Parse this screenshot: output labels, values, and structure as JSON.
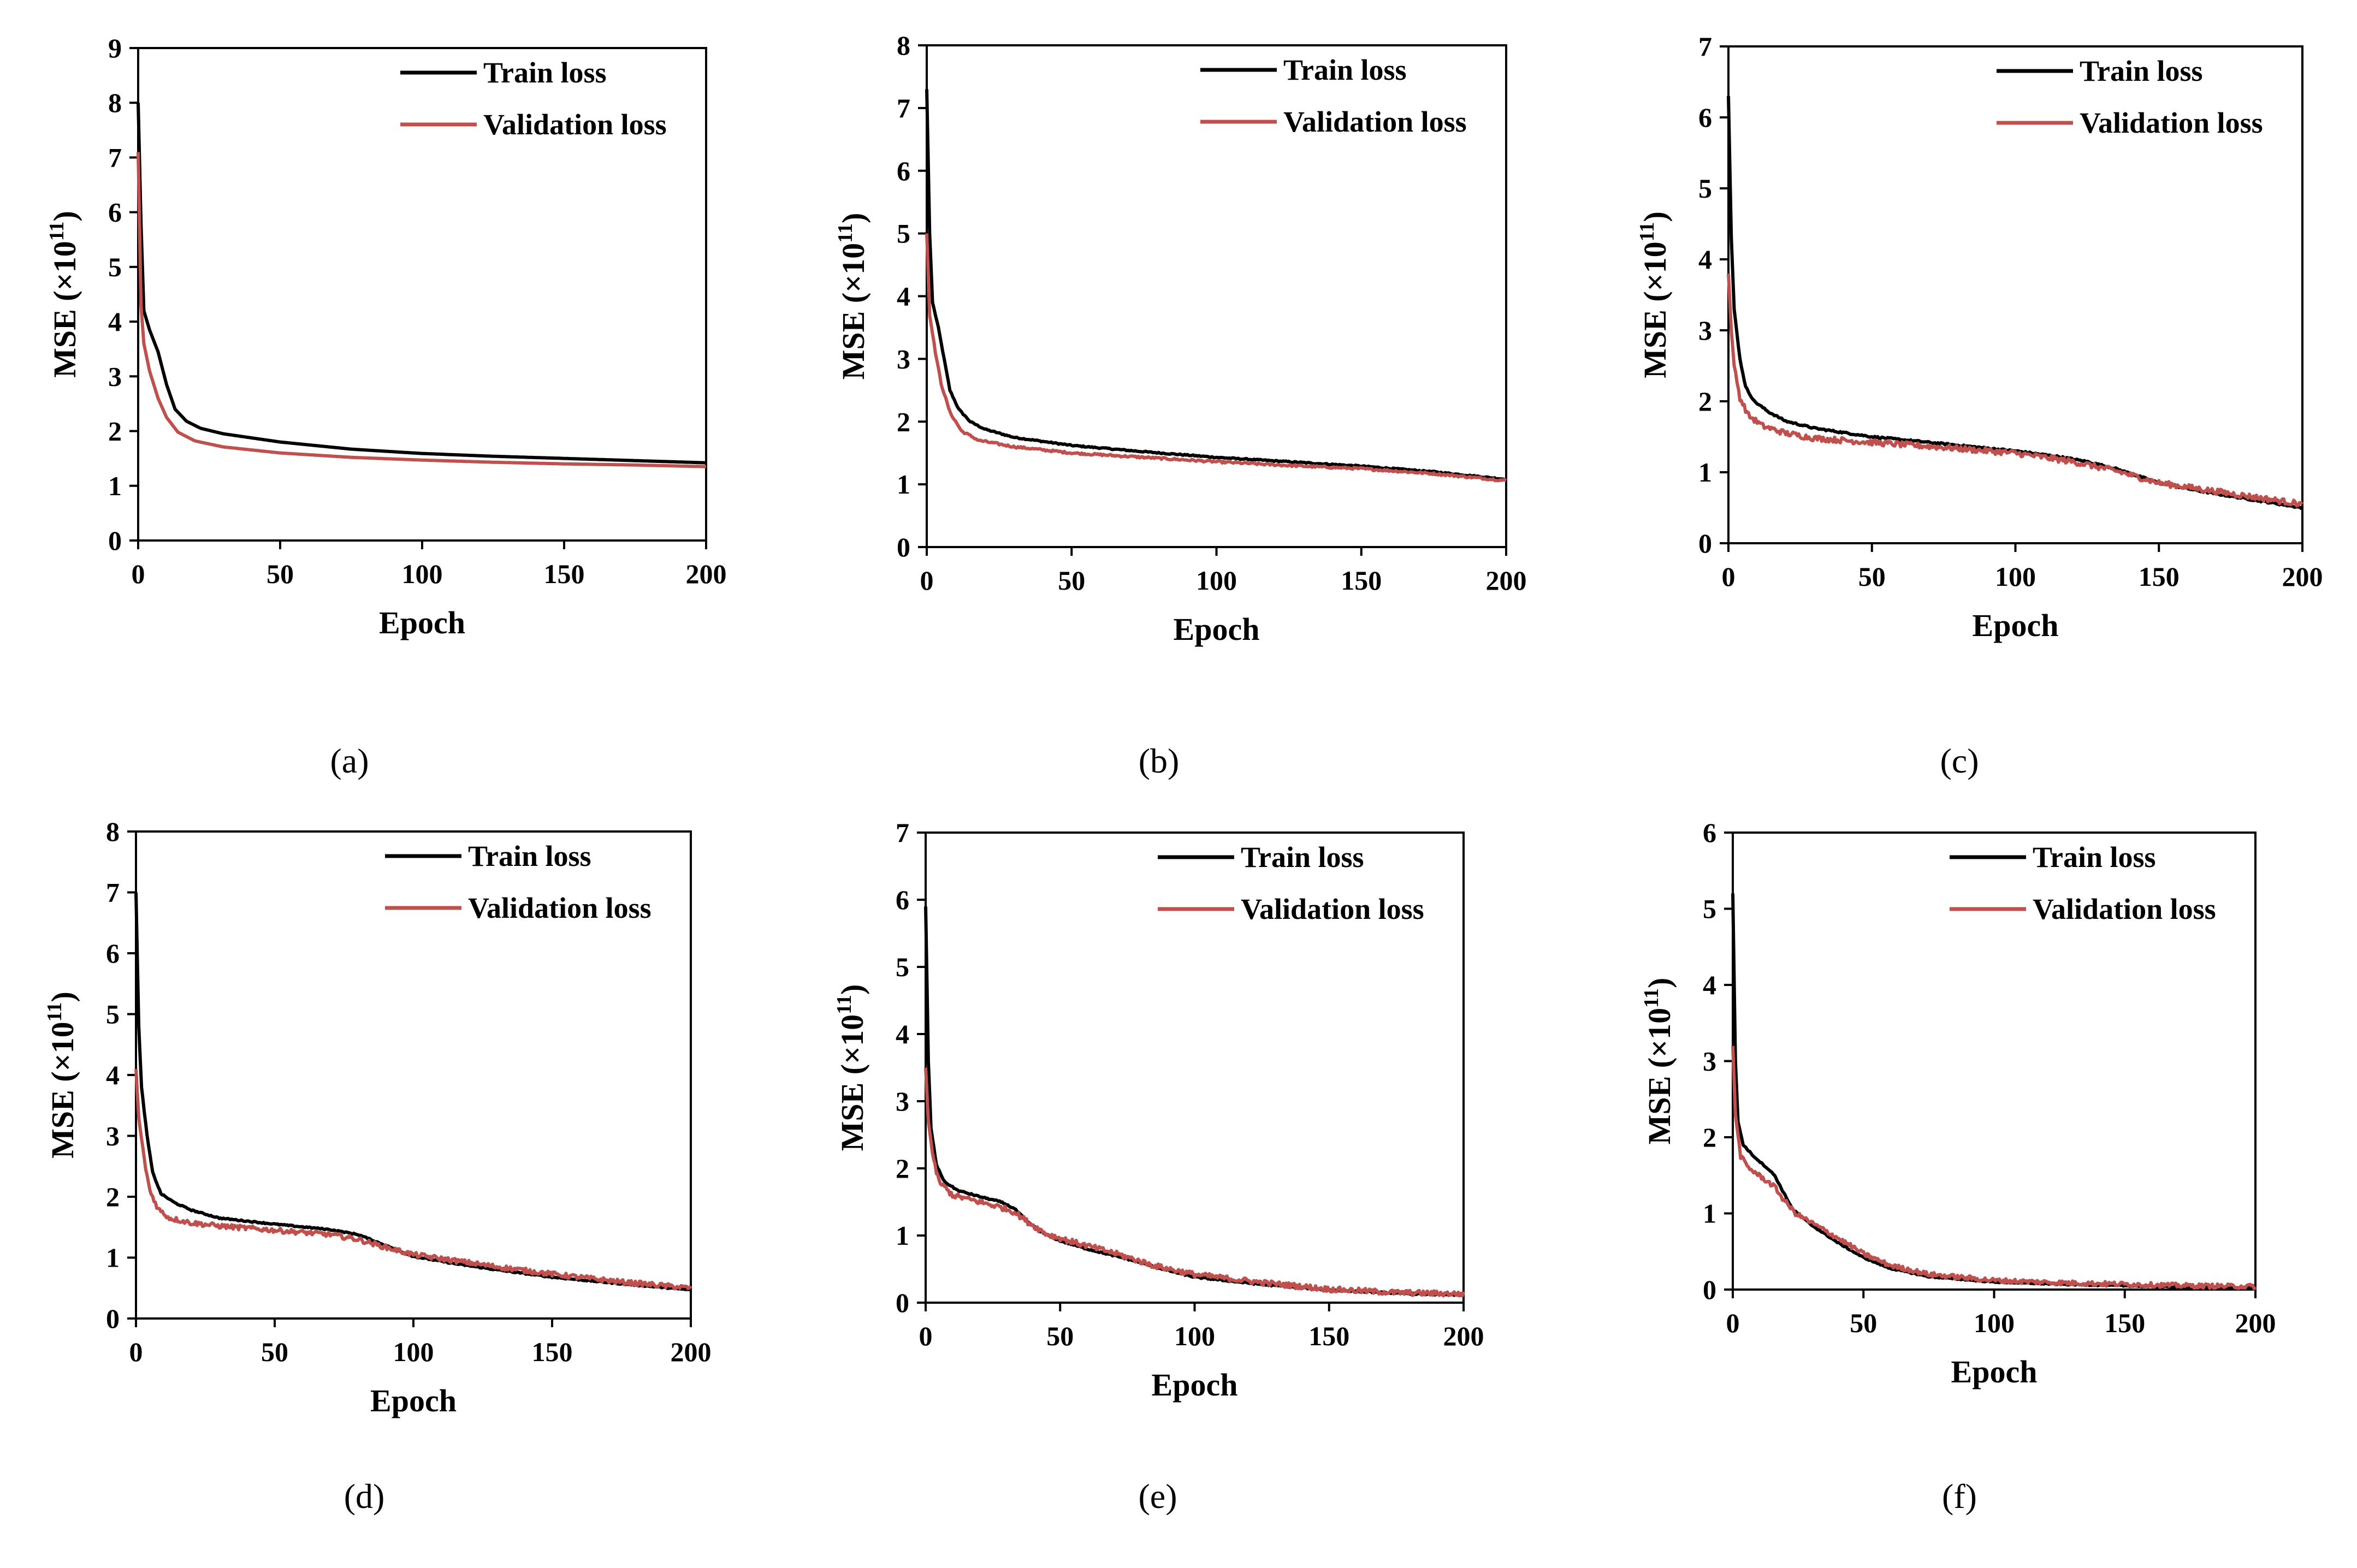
{
  "figure": {
    "series_colors": {
      "Train loss": "#000000",
      "Validation loss": "#c0504d"
    }
  },
  "chart_data": [
    {
      "type": "line",
      "panel": "(a)",
      "caption": "(a)",
      "xlabel": "Epoch",
      "ylabel": "MSE (×10",
      "ylabel_exp": "11",
      "ylabel_close": ")",
      "xlim": [
        0,
        200
      ],
      "ylim": [
        0,
        9
      ],
      "xticks": [
        0,
        50,
        100,
        150,
        200
      ],
      "yticks": [
        0,
        1,
        2,
        3,
        4,
        5,
        6,
        7,
        8,
        9
      ],
      "legend": {
        "position": "top-right",
        "entries": [
          "Train loss",
          "Validation loss"
        ]
      },
      "series": [
        {
          "name": "Train loss",
          "color": "#000000",
          "noise": 0,
          "points": [
            [
              0,
              8.0
            ],
            [
              1,
              5.8
            ],
            [
              2,
              4.2
            ],
            [
              4,
              3.85
            ],
            [
              7,
              3.45
            ],
            [
              10,
              2.85
            ],
            [
              13,
              2.4
            ],
            [
              17,
              2.18
            ],
            [
              22,
              2.05
            ],
            [
              30,
              1.95
            ],
            [
              50,
              1.8
            ],
            [
              75,
              1.67
            ],
            [
              100,
              1.59
            ],
            [
              125,
              1.54
            ],
            [
              150,
              1.5
            ],
            [
              175,
              1.46
            ],
            [
              200,
              1.42
            ]
          ]
        },
        {
          "name": "Validation loss",
          "color": "#c0504d",
          "noise": 0,
          "points": [
            [
              0,
              7.1
            ],
            [
              1,
              4.3
            ],
            [
              2,
              3.6
            ],
            [
              4,
              3.1
            ],
            [
              7,
              2.6
            ],
            [
              10,
              2.25
            ],
            [
              14,
              1.98
            ],
            [
              20,
              1.82
            ],
            [
              30,
              1.71
            ],
            [
              50,
              1.6
            ],
            [
              75,
              1.52
            ],
            [
              100,
              1.47
            ],
            [
              125,
              1.43
            ],
            [
              150,
              1.4
            ],
            [
              175,
              1.38
            ],
            [
              200,
              1.35
            ]
          ]
        }
      ]
    },
    {
      "type": "line",
      "panel": "(b)",
      "caption": "(b)",
      "xlabel": "Epoch",
      "ylabel": "MSE (×10",
      "ylabel_exp": "11",
      "ylabel_close": ")",
      "xlim": [
        0,
        200
      ],
      "ylim": [
        0,
        8
      ],
      "xticks": [
        0,
        50,
        100,
        150,
        200
      ],
      "yticks": [
        0,
        1,
        2,
        3,
        4,
        5,
        6,
        7,
        8
      ],
      "legend": {
        "position": "top-right",
        "entries": [
          "Train loss",
          "Validation loss"
        ]
      },
      "series": [
        {
          "name": "Train loss",
          "color": "#000000",
          "noise": 0.005,
          "points": [
            [
              0,
              7.3
            ],
            [
              1,
              5.0
            ],
            [
              2,
              3.9
            ],
            [
              4,
              3.5
            ],
            [
              6,
              3.0
            ],
            [
              8,
              2.5
            ],
            [
              11,
              2.2
            ],
            [
              15,
              2.0
            ],
            [
              20,
              1.88
            ],
            [
              30,
              1.75
            ],
            [
              50,
              1.62
            ],
            [
              75,
              1.52
            ],
            [
              100,
              1.43
            ],
            [
              125,
              1.36
            ],
            [
              150,
              1.29
            ],
            [
              175,
              1.2
            ],
            [
              200,
              1.08
            ]
          ]
        },
        {
          "name": "Validation loss",
          "color": "#c0504d",
          "noise": 0.008,
          "points": [
            [
              0,
              5.0
            ],
            [
              1,
              3.7
            ],
            [
              3,
              3.1
            ],
            [
              5,
              2.6
            ],
            [
              8,
              2.15
            ],
            [
              12,
              1.85
            ],
            [
              18,
              1.7
            ],
            [
              30,
              1.6
            ],
            [
              50,
              1.5
            ],
            [
              75,
              1.43
            ],
            [
              100,
              1.36
            ],
            [
              125,
              1.3
            ],
            [
              150,
              1.25
            ],
            [
              175,
              1.17
            ],
            [
              200,
              1.06
            ]
          ]
        }
      ]
    },
    {
      "type": "line",
      "panel": "(c)",
      "caption": "(c)",
      "xlabel": "Epoch",
      "ylabel": "MSE (×10",
      "ylabel_exp": "11",
      "ylabel_close": ")",
      "xlim": [
        0,
        200
      ],
      "ylim": [
        0,
        7
      ],
      "xticks": [
        0,
        50,
        100,
        150,
        200
      ],
      "yticks": [
        0,
        1,
        2,
        3,
        4,
        5,
        6,
        7
      ],
      "legend": {
        "position": "top-right",
        "entries": [
          "Train loss",
          "Validation loss"
        ]
      },
      "series": [
        {
          "name": "Train loss",
          "color": "#000000",
          "noise": 0.006,
          "points": [
            [
              0,
              6.3
            ],
            [
              1,
              4.3
            ],
            [
              2,
              3.3
            ],
            [
              4,
              2.6
            ],
            [
              6,
              2.2
            ],
            [
              9,
              2.0
            ],
            [
              14,
              1.85
            ],
            [
              20,
              1.72
            ],
            [
              30,
              1.62
            ],
            [
              50,
              1.5
            ],
            [
              75,
              1.4
            ],
            [
              100,
              1.3
            ],
            [
              115,
              1.22
            ],
            [
              125,
              1.15
            ],
            [
              135,
              1.05
            ],
            [
              150,
              0.85
            ],
            [
              165,
              0.73
            ],
            [
              180,
              0.63
            ],
            [
              200,
              0.5
            ]
          ]
        },
        {
          "name": "Validation loss",
          "color": "#c0504d",
          "noise": 0.02,
          "points": [
            [
              0,
              3.8
            ],
            [
              1,
              3.0
            ],
            [
              2,
              2.5
            ],
            [
              4,
              2.05
            ],
            [
              7,
              1.8
            ],
            [
              12,
              1.65
            ],
            [
              20,
              1.55
            ],
            [
              30,
              1.48
            ],
            [
              50,
              1.42
            ],
            [
              75,
              1.35
            ],
            [
              100,
              1.27
            ],
            [
              120,
              1.15
            ],
            [
              135,
              1.02
            ],
            [
              150,
              0.85
            ],
            [
              175,
              0.7
            ],
            [
              200,
              0.55
            ]
          ]
        }
      ]
    },
    {
      "type": "line",
      "panel": "(d)",
      "caption": "(d)",
      "xlabel": "Epoch",
      "ylabel": "MSE (×10",
      "ylabel_exp": "11",
      "ylabel_close": ")",
      "xlim": [
        0,
        200
      ],
      "ylim": [
        0,
        8
      ],
      "xticks": [
        0,
        50,
        100,
        150,
        200
      ],
      "yticks": [
        0,
        1,
        2,
        3,
        4,
        5,
        6,
        7,
        8
      ],
      "legend": {
        "position": "top-right",
        "entries": [
          "Train loss",
          "Validation loss"
        ]
      },
      "series": [
        {
          "name": "Train loss",
          "color": "#000000",
          "noise": 0.005,
          "points": [
            [
              0,
              7.0
            ],
            [
              1,
              4.8
            ],
            [
              2,
              3.8
            ],
            [
              4,
              3.0
            ],
            [
              6,
              2.4
            ],
            [
              9,
              2.05
            ],
            [
              14,
              1.9
            ],
            [
              20,
              1.78
            ],
            [
              30,
              1.65
            ],
            [
              50,
              1.55
            ],
            [
              70,
              1.46
            ],
            [
              80,
              1.38
            ],
            [
              90,
              1.2
            ],
            [
              100,
              1.02
            ],
            [
              115,
              0.9
            ],
            [
              130,
              0.8
            ],
            [
              150,
              0.68
            ],
            [
              175,
              0.57
            ],
            [
              200,
              0.47
            ]
          ]
        },
        {
          "name": "Validation loss",
          "color": "#c0504d",
          "noise": 0.02,
          "points": [
            [
              0,
              4.1
            ],
            [
              1,
              3.3
            ],
            [
              3,
              2.6
            ],
            [
              5,
              2.1
            ],
            [
              8,
              1.8
            ],
            [
              12,
              1.65
            ],
            [
              20,
              1.57
            ],
            [
              30,
              1.52
            ],
            [
              50,
              1.45
            ],
            [
              70,
              1.38
            ],
            [
              80,
              1.3
            ],
            [
              90,
              1.17
            ],
            [
              100,
              1.05
            ],
            [
              115,
              0.95
            ],
            [
              130,
              0.85
            ],
            [
              150,
              0.73
            ],
            [
              175,
              0.6
            ],
            [
              200,
              0.5
            ]
          ]
        }
      ]
    },
    {
      "type": "line",
      "panel": "(e)",
      "caption": "(e)",
      "xlabel": "Epoch",
      "ylabel": "MSE (×10",
      "ylabel_exp": "11",
      "ylabel_close": ")",
      "xlim": [
        0,
        200
      ],
      "ylim": [
        0,
        7
      ],
      "xticks": [
        0,
        50,
        100,
        150,
        200
      ],
      "yticks": [
        0,
        1,
        2,
        3,
        4,
        5,
        6,
        7
      ],
      "legend": {
        "position": "top-right",
        "entries": [
          "Train loss",
          "Validation loss"
        ]
      },
      "series": [
        {
          "name": "Train loss",
          "color": "#000000",
          "noise": 0.005,
          "points": [
            [
              0,
              5.9
            ],
            [
              1,
              3.6
            ],
            [
              2,
              2.6
            ],
            [
              4,
              2.05
            ],
            [
              7,
              1.8
            ],
            [
              12,
              1.67
            ],
            [
              20,
              1.58
            ],
            [
              28,
              1.5
            ],
            [
              33,
              1.4
            ],
            [
              38,
              1.2
            ],
            [
              43,
              1.05
            ],
            [
              50,
              0.92
            ],
            [
              60,
              0.8
            ],
            [
              75,
              0.65
            ],
            [
              90,
              0.48
            ],
            [
              100,
              0.38
            ],
            [
              125,
              0.27
            ],
            [
              150,
              0.19
            ],
            [
              175,
              0.14
            ],
            [
              200,
              0.11
            ]
          ]
        },
        {
          "name": "Validation loss",
          "color": "#c0504d",
          "noise": 0.02,
          "points": [
            [
              0,
              3.5
            ],
            [
              1,
              2.7
            ],
            [
              3,
              2.1
            ],
            [
              5,
              1.8
            ],
            [
              10,
              1.6
            ],
            [
              20,
              1.5
            ],
            [
              28,
              1.42
            ],
            [
              33,
              1.35
            ],
            [
              38,
              1.2
            ],
            [
              45,
              1.02
            ],
            [
              55,
              0.9
            ],
            [
              70,
              0.74
            ],
            [
              85,
              0.55
            ],
            [
              100,
              0.42
            ],
            [
              125,
              0.3
            ],
            [
              150,
              0.2
            ],
            [
              175,
              0.15
            ],
            [
              200,
              0.13
            ]
          ]
        }
      ]
    },
    {
      "type": "line",
      "panel": "(f)",
      "caption": "(f)",
      "xlabel": "Epoch",
      "ylabel": "MSE (×10",
      "ylabel_exp": "11",
      "ylabel_close": ")",
      "xlim": [
        0,
        200
      ],
      "ylim": [
        0,
        6
      ],
      "xticks": [
        0,
        50,
        100,
        150,
        200
      ],
      "yticks": [
        0,
        1,
        2,
        3,
        4,
        5,
        6
      ],
      "legend": {
        "position": "top-right",
        "entries": [
          "Train loss",
          "Validation loss"
        ]
      },
      "series": [
        {
          "name": "Train loss",
          "color": "#000000",
          "noise": 0.004,
          "points": [
            [
              0,
              5.2
            ],
            [
              1,
              3.0
            ],
            [
              2,
              2.2
            ],
            [
              4,
              1.9
            ],
            [
              8,
              1.75
            ],
            [
              13,
              1.6
            ],
            [
              16,
              1.5
            ],
            [
              19,
              1.3
            ],
            [
              23,
              1.05
            ],
            [
              30,
              0.85
            ],
            [
              40,
              0.62
            ],
            [
              50,
              0.42
            ],
            [
              60,
              0.28
            ],
            [
              75,
              0.17
            ],
            [
              100,
              0.1
            ],
            [
              125,
              0.07
            ],
            [
              150,
              0.05
            ],
            [
              175,
              0.03
            ],
            [
              200,
              0.02
            ]
          ]
        },
        {
          "name": "Validation loss",
          "color": "#c0504d",
          "noise": 0.015,
          "points": [
            [
              0,
              3.2
            ],
            [
              1,
              2.3
            ],
            [
              3,
              1.75
            ],
            [
              6,
              1.6
            ],
            [
              12,
              1.45
            ],
            [
              16,
              1.35
            ],
            [
              19,
              1.2
            ],
            [
              24,
              1.0
            ],
            [
              30,
              0.88
            ],
            [
              40,
              0.68
            ],
            [
              50,
              0.47
            ],
            [
              60,
              0.32
            ],
            [
              75,
              0.2
            ],
            [
              100,
              0.12
            ],
            [
              125,
              0.09
            ],
            [
              150,
              0.07
            ],
            [
              175,
              0.05
            ],
            [
              200,
              0.04
            ]
          ]
        }
      ]
    }
  ]
}
